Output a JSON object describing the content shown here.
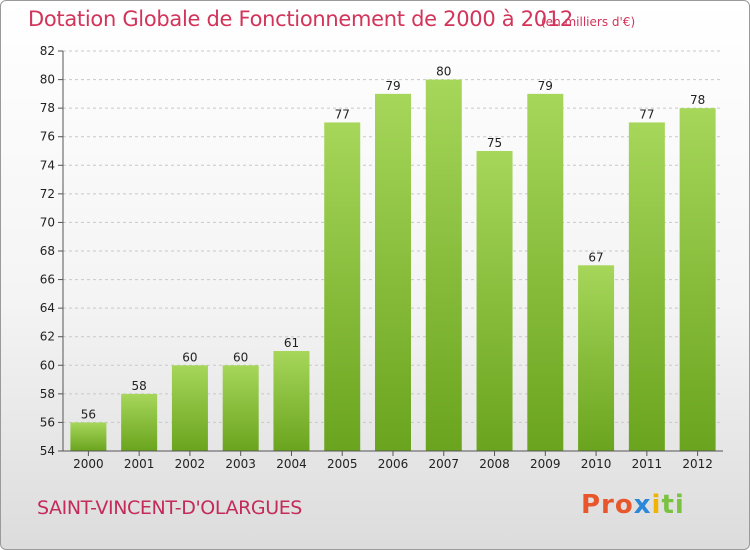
{
  "title": "Dotation Globale de Fonctionnement de 2000 à 2012",
  "unit_note": "(en milliers d'€)",
  "commune": "SAINT-VINCENT-D'OLARGUES",
  "logo": {
    "p1": "Pro",
    "p2": "x",
    "p3": "i",
    "p4": "ti"
  },
  "colors": {
    "bar_light": "#a6d65a",
    "bar_dark": "#6aa41e",
    "title": "#d2345a"
  },
  "chart_data": {
    "type": "bar",
    "categories": [
      "2000",
      "2001",
      "2002",
      "2003",
      "2004",
      "2005",
      "2006",
      "2007",
      "2008",
      "2009",
      "2010",
      "2011",
      "2012"
    ],
    "values": [
      56,
      58,
      60,
      60,
      61,
      77,
      79,
      80,
      75,
      79,
      67,
      77,
      78
    ],
    "data_labels": [
      "56",
      "58",
      "60",
      "60",
      "61",
      "77",
      "79",
      "80",
      "75",
      "79",
      "67",
      "77",
      "78"
    ],
    "yticks": [
      54,
      56,
      58,
      60,
      62,
      64,
      66,
      68,
      70,
      72,
      74,
      76,
      78,
      80,
      82
    ],
    "ytick_labels": [
      "54",
      "56",
      "58",
      "60",
      "62",
      "64",
      "66",
      "68",
      "70",
      "72",
      "74",
      "76",
      "78",
      "80",
      "82"
    ],
    "ylim": [
      54,
      82
    ],
    "grid": true
  }
}
